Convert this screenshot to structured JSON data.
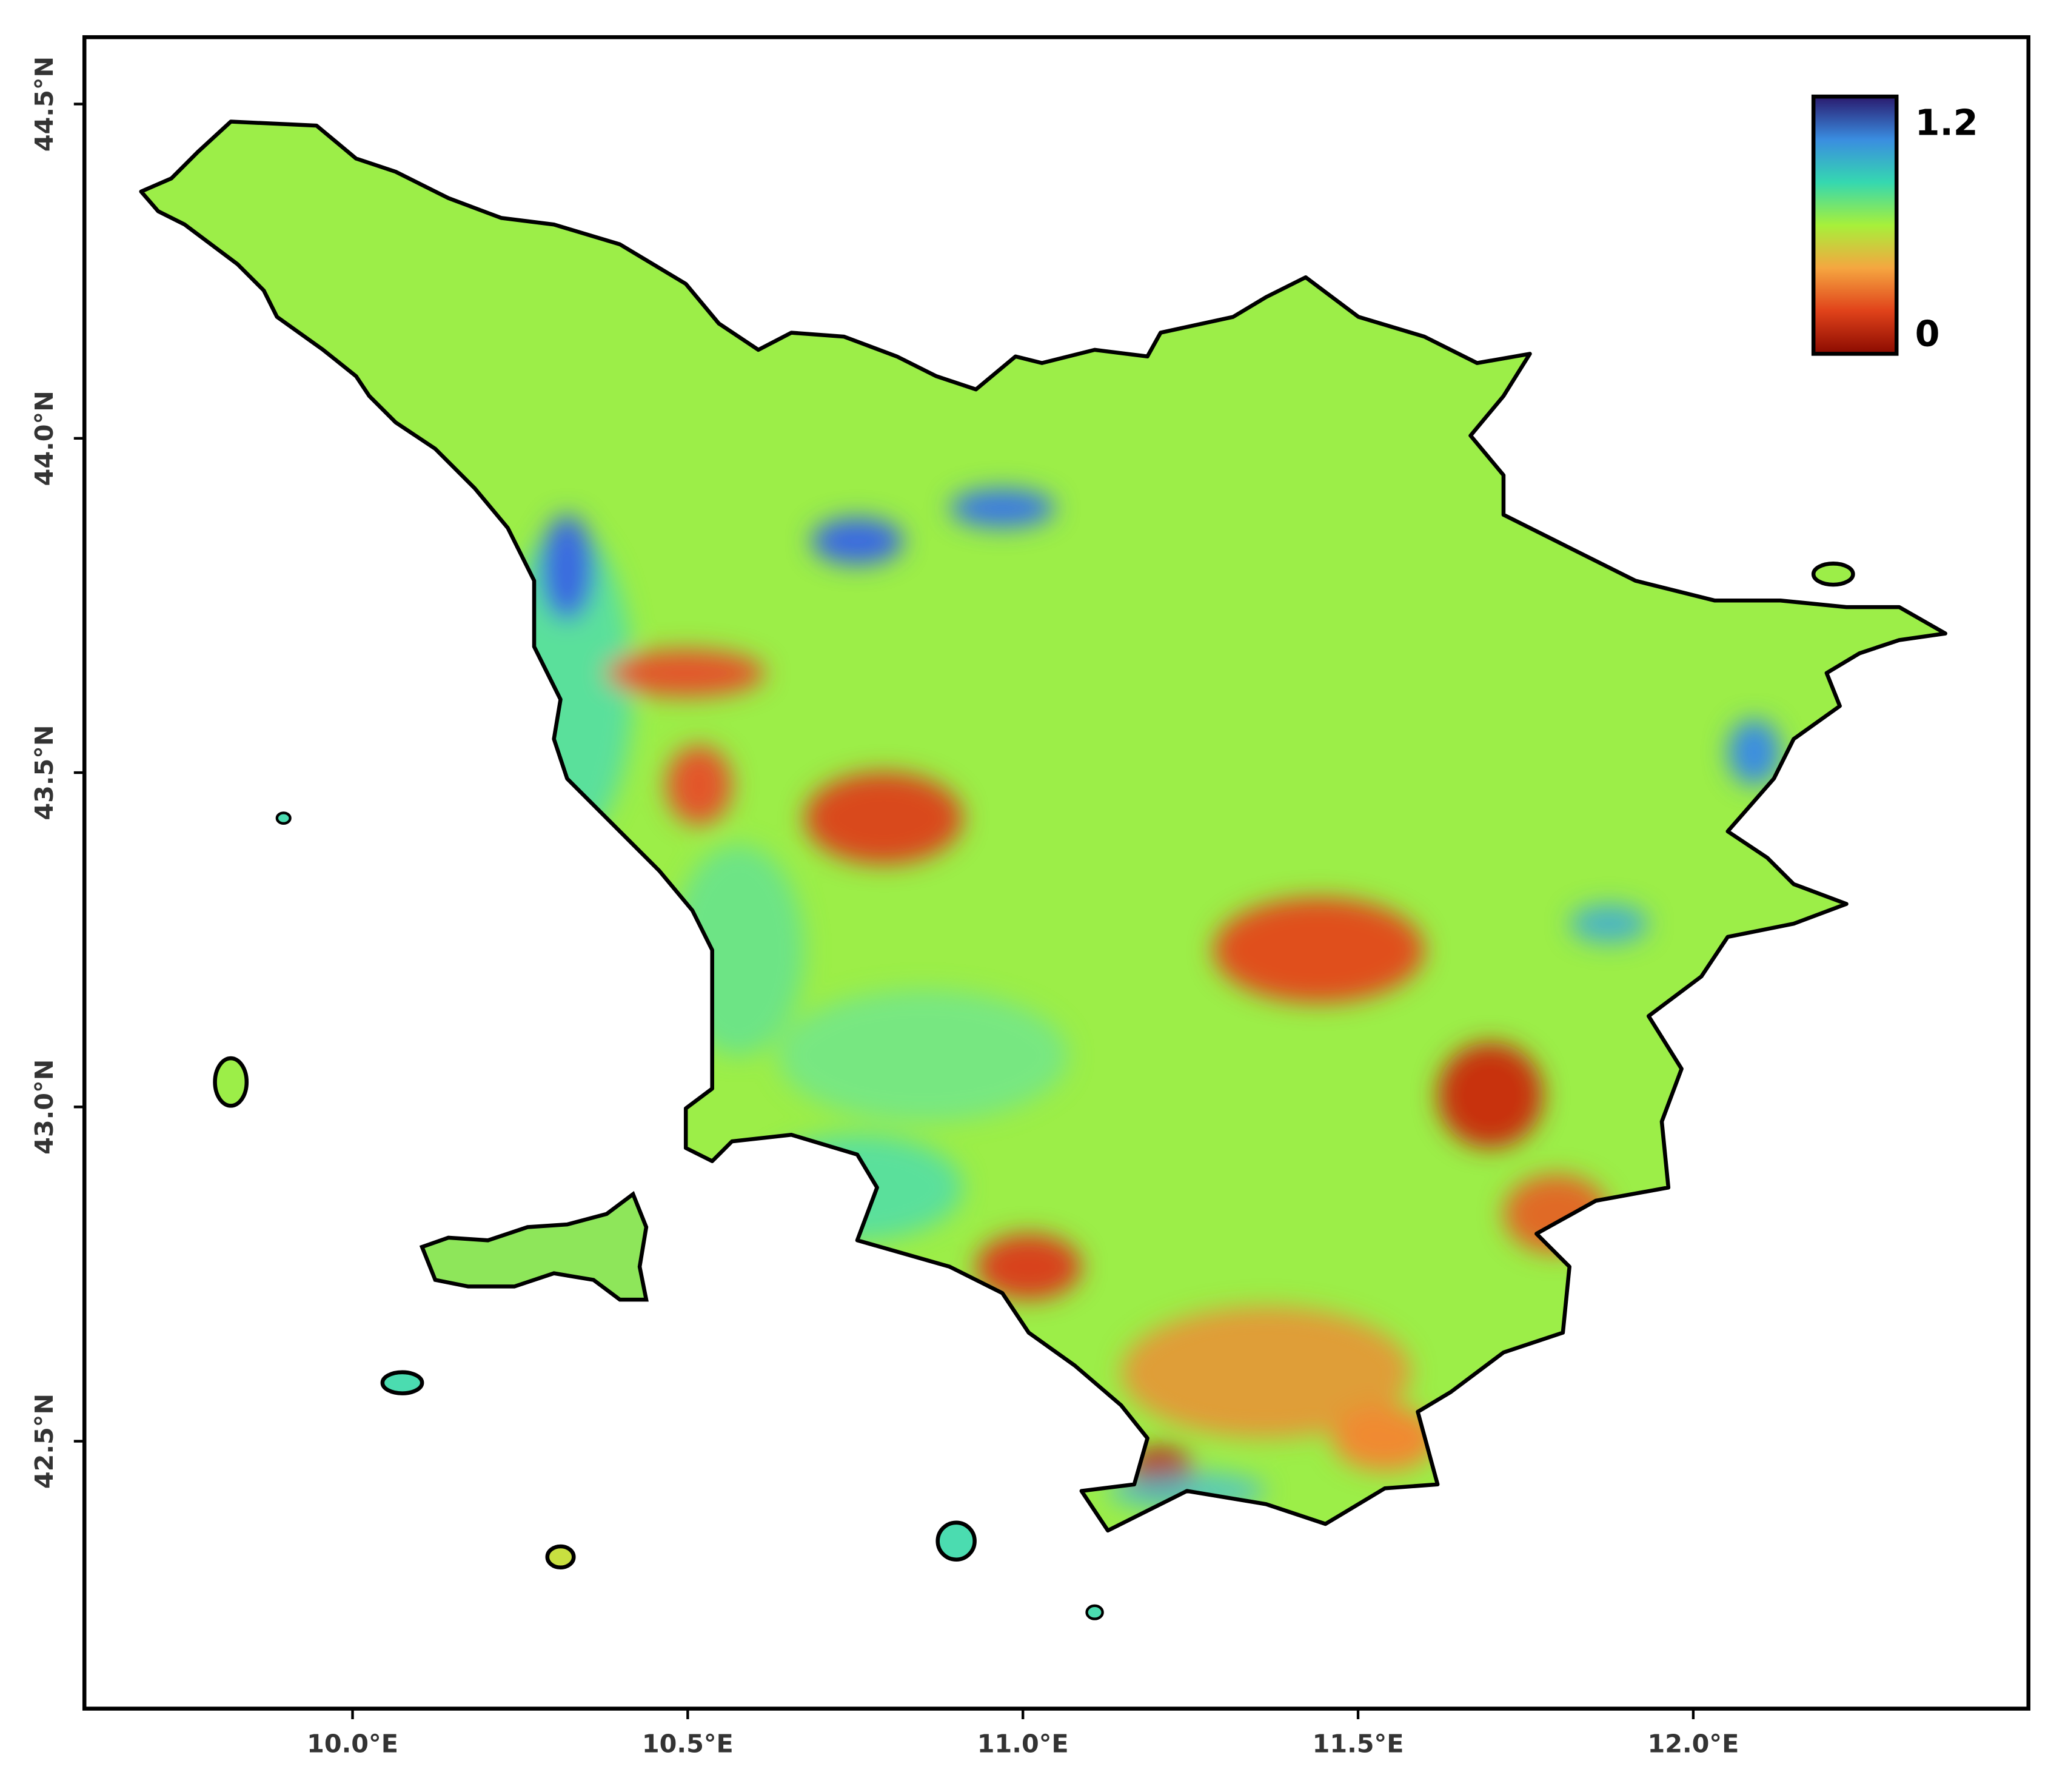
{
  "chart_data": {
    "type": "map",
    "xlim": [
      9.6,
      12.5
    ],
    "ylim": [
      42.1,
      44.6
    ],
    "xticks": [
      {
        "value": 10.0,
        "label": "10.0°E"
      },
      {
        "value": 10.5,
        "label": "10.5°E"
      },
      {
        "value": 11.0,
        "label": "11.0°E"
      },
      {
        "value": 11.5,
        "label": "11.5°E"
      },
      {
        "value": 12.0,
        "label": "12.0°E"
      }
    ],
    "yticks": [
      {
        "value": 42.5,
        "label": "42.5°N"
      },
      {
        "value": 43.0,
        "label": "43.0°N"
      },
      {
        "value": 43.5,
        "label": "43.5°N"
      },
      {
        "value": 44.0,
        "label": "44.0°N"
      },
      {
        "value": 44.5,
        "label": "44.5°N"
      }
    ],
    "colorbar": {
      "range": [
        0,
        1.2
      ],
      "ticks": [
        1.2,
        0
      ],
      "colors": [
        "#8a0a00",
        "#e0421a",
        "#f5a640",
        "#a7f03a",
        "#35d8b0",
        "#3a8de0",
        "#2a1a6e"
      ]
    }
  }
}
